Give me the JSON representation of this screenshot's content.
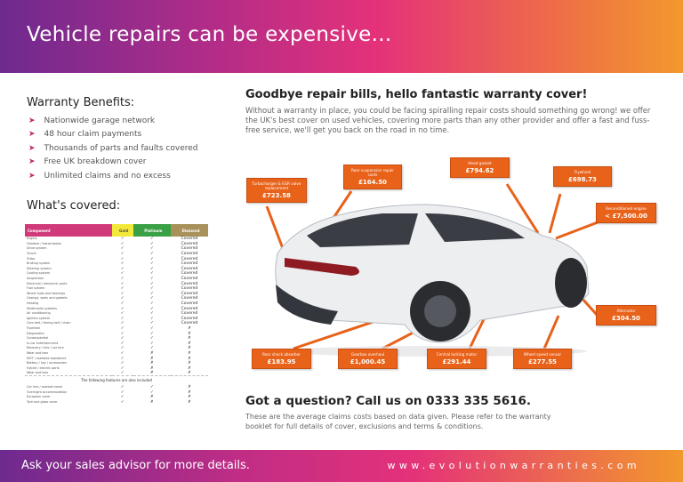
{
  "header": {
    "title": "Vehicle repairs can be expensive..."
  },
  "benefits": {
    "title": "Warranty Benefits:",
    "items": [
      "Nationwide garage network",
      "48 hour claim payments",
      "Thousands of parts and faults covered",
      "Free UK breakdown cover",
      "Unlimited claims and no excess"
    ]
  },
  "covered": {
    "title": "What's covered:",
    "columns": [
      "Component",
      "Gold",
      "Platinum",
      "Diamond"
    ],
    "column_colors": [
      "#d0397a",
      "#f2e93a",
      "#3aa046",
      "#a8915a"
    ],
    "rows": [
      [
        "Engine",
        "✓",
        "✓",
        "Covered"
      ],
      [
        "Gearbox / transmission",
        "✓",
        "✓",
        "Covered"
      ],
      [
        "Drive system",
        "✓",
        "✓",
        "Covered"
      ],
      [
        "Clutch",
        "✓",
        "✓",
        "Covered"
      ],
      [
        "Turbo",
        "✓",
        "✓",
        "Covered"
      ],
      [
        "Braking system",
        "✓",
        "✓",
        "Covered"
      ],
      [
        "Steering system",
        "✓",
        "✓",
        "Covered"
      ],
      [
        "Cooling system",
        "✓",
        "✓",
        "Covered"
      ],
      [
        "Suspension",
        "✓",
        "✓",
        "Covered"
      ],
      [
        "Electrical / electronic parts",
        "✓",
        "✓",
        "Covered"
      ],
      [
        "Fuel system",
        "✓",
        "✓",
        "Covered"
      ],
      [
        "Wheel hubs and bearings",
        "✓",
        "✓",
        "Covered"
      ],
      [
        "Casings, seals and gaskets",
        "✓",
        "✓",
        "Covered"
      ],
      [
        "Heating",
        "✓",
        "✓",
        "Covered"
      ],
      [
        "Multimedia systems",
        "✓",
        "✓",
        "Covered"
      ],
      [
        "Air conditioning",
        "✓",
        "✓",
        "Covered"
      ],
      [
        "Ignition system",
        "✓",
        "✓",
        "Covered"
      ],
      [
        "Cam belt / timing belt / chain",
        "✓",
        "✓",
        "Covered"
      ],
      [
        "Flywheel",
        "✓",
        "✓",
        "✗"
      ],
      [
        "Diagnostics",
        "✓",
        "✓",
        "✗"
      ],
      [
        "Consequential",
        "✓",
        "✓",
        "✗"
      ],
      [
        "In-car entertainment",
        "✓",
        "✓",
        "✗"
      ],
      [
        "Recovery / hire / car hire",
        "✓",
        "✓",
        "✗"
      ],
      [
        "Wear and tear",
        "✓",
        "✗",
        "✗"
      ],
      [
        "MOT / roadside assistance",
        "✓",
        "✗",
        "✗"
      ],
      [
        "Battery / key / accessories",
        "✓",
        "✗",
        "✗"
      ],
      [
        "Hybrid / electric parts",
        "✓",
        "✗",
        "✗"
      ],
      [
        "Wear and tear",
        "✓",
        "✗",
        "✗"
      ]
    ],
    "note": "The following features are also included",
    "extra_rows": [
      [
        "Car hire / onward travel",
        "✓",
        "✓",
        "✗"
      ],
      [
        "Overnight accommodation",
        "✓",
        "✓",
        "✗"
      ],
      [
        "European cover",
        "✓",
        "✗",
        "✗"
      ],
      [
        "Tyre and glass cover",
        "✓",
        "✗",
        "✗"
      ]
    ]
  },
  "main": {
    "heading": "Goodbye repair bills, hello fantastic warranty cover!",
    "paragraph": "Without a warranty in place, you could be facing spiralling repair costs should something go wrong! we offer the UK's best cover on used vehicles, covering more parts than any other provider and offer a fast and fuss-free service, we'll get you back on the road in no time."
  },
  "callouts": [
    {
      "label": "Turbocharger & EGR valve replacement",
      "value": "£723.58"
    },
    {
      "label": "Rear suspension repair costs",
      "value": "£164.50"
    },
    {
      "label": "Head gasket",
      "value": "£794.62"
    },
    {
      "label": "Flywheel",
      "value": "£698.73"
    },
    {
      "label": "Reconditioned engine",
      "value": "< £7,500.00"
    },
    {
      "label": "Alternator",
      "value": "£304.50"
    },
    {
      "label": "Rear shock absorber",
      "value": "£183.95"
    },
    {
      "label": "Gearbox overhaul",
      "value": "£1,000.45"
    },
    {
      "label": "Central locking motor",
      "value": "£291.44"
    },
    {
      "label": "Wheel speed sensor",
      "value": "£277.55"
    }
  ],
  "contact": {
    "heading": "Got a question? Call us on 0333 335 5616.",
    "note": "These are the average claims costs based on data given. Please refer to the warranty booklet for full details of cover, exclusions and terms & conditions."
  },
  "footer": {
    "left": "Ask your sales advisor for more details.",
    "right": "www.evolutionwarranties.com"
  },
  "colors": {
    "callout": "#e8621a",
    "accent": "#c0286f"
  }
}
